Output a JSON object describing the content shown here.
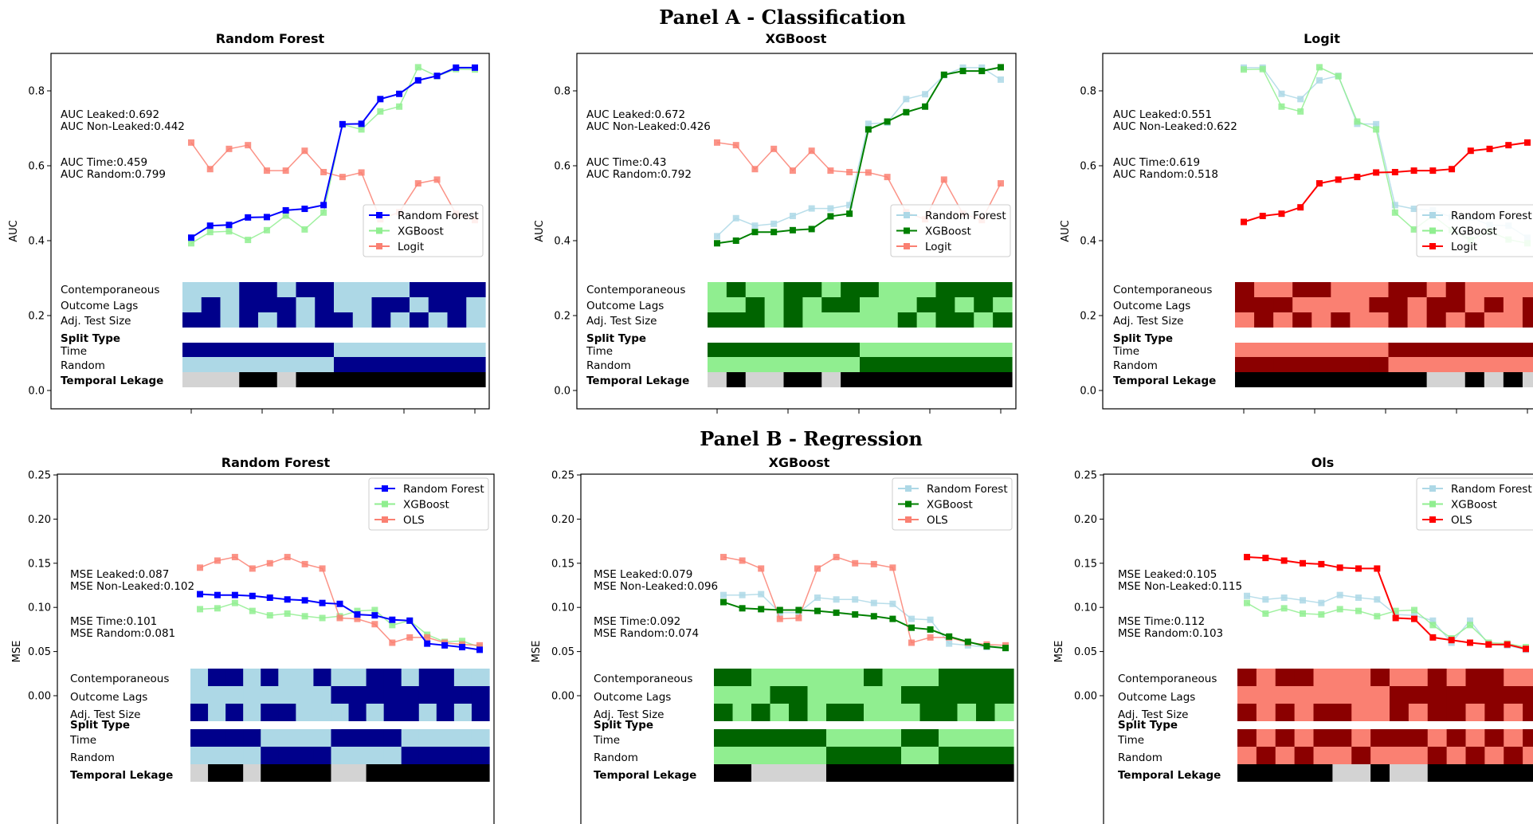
{
  "panels": [
    {
      "title": "Panel A - Classification"
    },
    {
      "title": "Panel B - Regression"
    }
  ],
  "heatmap_labels": {
    "contemporaneous": "Contemporaneous",
    "outcome_lags": "Outcome Lags",
    "adj_test_size": "Adj. Test Size",
    "split_type": "Split Type",
    "time": "Time",
    "random": "Random",
    "temporal_leakage": "Temporal Lekage"
  },
  "colors": {
    "rf_dark": "#00008b",
    "rf_light": "#add8e6",
    "rf_line": "#0000ff",
    "xgb_dark": "#006400",
    "xgb_light": "#90ee90",
    "xgb_line": "#008000",
    "lin_dark": "#8b0000",
    "lin_light": "#fa8072",
    "lin_line": "#ff0000",
    "leak_on": "#000000",
    "leak_off": "#d3d3d3"
  },
  "chart_data": [
    {
      "type": "line",
      "panel": 0,
      "title": "Random Forest",
      "highlight": 0,
      "xlabel": "",
      "ylabel": "AUC",
      "ylim": [
        -0.05,
        0.9
      ],
      "yticks": [
        "0.0",
        "0.2",
        "0.4",
        "0.6",
        "0.8"
      ],
      "annotations": [
        "AUC Leaked:0.692",
        "AUC Non-Leaked:0.442",
        "AUC Time:0.459",
        "AUC Random:0.799"
      ],
      "series": [
        {
          "name": "Random Forest",
          "values": [
            0.408,
            0.44,
            0.442,
            0.462,
            0.463,
            0.481,
            0.485,
            0.495,
            0.711,
            0.712,
            0.778,
            0.792,
            0.828,
            0.84,
            0.862,
            0.862
          ]
        },
        {
          "name": "XGBoost",
          "values": [
            0.393,
            0.423,
            0.425,
            0.402,
            0.428,
            0.467,
            0.43,
            0.475,
            0.71,
            0.697,
            0.745,
            0.758,
            0.863,
            0.839,
            0.858,
            0.857
          ]
        },
        {
          "name": "Logit",
          "values": [
            0.662,
            0.591,
            0.645,
            0.655,
            0.587,
            0.587,
            0.64,
            0.583,
            0.57,
            0.582,
            0.457,
            0.476,
            0.553,
            0.563,
            0.472,
            0.455
          ]
        }
      ],
      "heatmap": {
        "contemporaneous": [
          0,
          0,
          0,
          1,
          1,
          0,
          1,
          1,
          0,
          0,
          0,
          0,
          1,
          1,
          1,
          1
        ],
        "outcome_lags": [
          0,
          1,
          0,
          1,
          1,
          1,
          0,
          1,
          0,
          0,
          1,
          1,
          0,
          1,
          1,
          0
        ],
        "adj_test_size": [
          1,
          1,
          0,
          1,
          0,
          1,
          0,
          1,
          1,
          0,
          1,
          0,
          1,
          0,
          1,
          0
        ],
        "time": [
          1,
          1,
          1,
          1,
          1,
          1,
          1,
          1,
          0,
          0,
          0,
          0,
          0,
          0,
          0,
          0
        ],
        "random": [
          0,
          0,
          0,
          0,
          0,
          0,
          0,
          0,
          1,
          1,
          1,
          1,
          1,
          1,
          1,
          1
        ],
        "leakage": [
          0,
          0,
          0,
          1,
          1,
          0,
          1,
          1,
          1,
          1,
          1,
          1,
          1,
          1,
          1,
          1
        ]
      }
    },
    {
      "type": "line",
      "panel": 0,
      "title": "XGBoost",
      "highlight": 1,
      "xlabel": "",
      "ylabel": "AUC",
      "ylim": [
        -0.05,
        0.9
      ],
      "yticks": [
        "0.0",
        "0.2",
        "0.4",
        "0.6",
        "0.8"
      ],
      "annotations": [
        "AUC Leaked:0.672",
        "AUC Non-Leaked:0.426",
        "AUC Time:0.43",
        "AUC Random:0.792"
      ],
      "series": [
        {
          "name": "Random Forest",
          "values": [
            0.412,
            0.46,
            0.44,
            0.445,
            0.466,
            0.486,
            0.486,
            0.495,
            0.712,
            0.715,
            0.778,
            0.791,
            0.842,
            0.862,
            0.862,
            0.83
          ]
        },
        {
          "name": "XGBoost",
          "values": [
            0.393,
            0.4,
            0.423,
            0.423,
            0.428,
            0.431,
            0.465,
            0.472,
            0.697,
            0.718,
            0.743,
            0.758,
            0.843,
            0.853,
            0.853,
            0.863
          ]
        },
        {
          "name": "Logit",
          "values": [
            0.662,
            0.655,
            0.591,
            0.645,
            0.587,
            0.64,
            0.587,
            0.583,
            0.582,
            0.57,
            0.476,
            0.457,
            0.563,
            0.472,
            0.455,
            0.553
          ]
        }
      ],
      "heatmap": {
        "contemporaneous": [
          0,
          1,
          0,
          0,
          1,
          1,
          0,
          1,
          1,
          0,
          0,
          0,
          1,
          1,
          1,
          1
        ],
        "outcome_lags": [
          0,
          0,
          1,
          0,
          1,
          0,
          1,
          1,
          0,
          0,
          0,
          1,
          1,
          0,
          1,
          0
        ],
        "adj_test_size": [
          1,
          1,
          1,
          0,
          1,
          0,
          0,
          0,
          0,
          0,
          1,
          0,
          1,
          1,
          0,
          1
        ],
        "time": [
          1,
          1,
          1,
          1,
          1,
          1,
          1,
          1,
          0,
          0,
          0,
          0,
          0,
          0,
          0,
          0
        ],
        "random": [
          0,
          0,
          0,
          0,
          0,
          0,
          0,
          0,
          1,
          1,
          1,
          1,
          1,
          1,
          1,
          1
        ],
        "leakage": [
          0,
          1,
          0,
          0,
          1,
          1,
          0,
          1,
          1,
          1,
          1,
          1,
          1,
          1,
          1,
          1
        ]
      }
    },
    {
      "type": "line",
      "panel": 0,
      "title": "Logit",
      "highlight": 2,
      "xlabel": "",
      "ylabel": "AUC",
      "ylim": [
        -0.05,
        0.9
      ],
      "yticks": [
        "0.0",
        "0.2",
        "0.4",
        "0.6",
        "0.8"
      ],
      "annotations": [
        "AUC Leaked:0.551",
        "AUC Non-Leaked:0.622",
        "AUC Time:0.619",
        "AUC Random:0.518"
      ],
      "series": [
        {
          "name": "Random Forest",
          "values": [
            0.862,
            0.862,
            0.792,
            0.778,
            0.828,
            0.84,
            0.712,
            0.711,
            0.495,
            0.485,
            0.481,
            0.463,
            0.462,
            0.442,
            0.44,
            0.408
          ]
        },
        {
          "name": "XGBoost",
          "values": [
            0.857,
            0.858,
            0.758,
            0.745,
            0.863,
            0.839,
            0.718,
            0.697,
            0.475,
            0.43,
            0.467,
            0.428,
            0.402,
            0.425,
            0.403,
            0.393
          ]
        },
        {
          "name": "Logit",
          "values": [
            0.45,
            0.466,
            0.472,
            0.489,
            0.553,
            0.563,
            0.57,
            0.582,
            0.583,
            0.587,
            0.587,
            0.591,
            0.64,
            0.645,
            0.655,
            0.662
          ]
        }
      ],
      "heatmap": {
        "contemporaneous": [
          1,
          0,
          0,
          1,
          1,
          0,
          0,
          0,
          1,
          1,
          0,
          1,
          0,
          0,
          0,
          0
        ],
        "outcome_lags": [
          1,
          1,
          1,
          0,
          0,
          0,
          0,
          1,
          1,
          0,
          1,
          1,
          0,
          1,
          0,
          1
        ],
        "adj_test_size": [
          0,
          1,
          0,
          1,
          0,
          1,
          0,
          0,
          1,
          0,
          1,
          0,
          1,
          0,
          0,
          1
        ],
        "time": [
          0,
          0,
          0,
          0,
          0,
          0,
          0,
          0,
          1,
          1,
          1,
          1,
          1,
          1,
          1,
          1
        ],
        "random": [
          1,
          1,
          1,
          1,
          1,
          1,
          1,
          1,
          0,
          0,
          0,
          0,
          0,
          0,
          0,
          0
        ],
        "leakage": [
          1,
          1,
          1,
          1,
          1,
          1,
          1,
          1,
          1,
          1,
          0,
          0,
          1,
          0,
          1,
          0
        ]
      }
    },
    {
      "type": "line",
      "panel": 1,
      "title": "Random Forest",
      "highlight": 0,
      "xlabel": "",
      "ylabel": "MSE",
      "ylim": [
        -0.15,
        0.25
      ],
      "yticks": [
        "0.00",
        "0.05",
        "0.10",
        "0.15",
        "0.20",
        "0.25"
      ],
      "annotations": [
        "MSE Leaked:0.087",
        "MSE Non-Leaked:0.102",
        "MSE Time:0.101",
        "MSE Random:0.081"
      ],
      "series": [
        {
          "name": "Random Forest",
          "values": [
            0.115,
            0.114,
            0.114,
            0.113,
            0.111,
            0.109,
            0.108,
            0.105,
            0.104,
            0.092,
            0.091,
            0.086,
            0.085,
            0.059,
            0.057,
            0.055,
            0.052
          ]
        },
        {
          "name": "XGBoost",
          "values": [
            0.098,
            0.099,
            0.105,
            0.096,
            0.091,
            0.093,
            0.09,
            0.088,
            0.09,
            0.096,
            0.097,
            0.08,
            0.085,
            0.069,
            0.061,
            0.062,
            0.055
          ]
        },
        {
          "name": "OLS",
          "values": [
            0.145,
            0.153,
            0.157,
            0.144,
            0.15,
            0.157,
            0.149,
            0.144,
            0.088,
            0.087,
            0.081,
            0.06,
            0.066,
            0.066,
            0.06,
            0.058,
            0.057
          ]
        }
      ],
      "heatmap": {
        "contemporaneous": [
          0,
          1,
          1,
          0,
          1,
          0,
          0,
          1,
          0,
          0,
          1,
          1,
          0,
          1,
          1,
          0,
          0
        ],
        "outcome_lags": [
          0,
          0,
          0,
          0,
          0,
          0,
          0,
          0,
          1,
          1,
          1,
          1,
          1,
          1,
          1,
          1,
          1
        ],
        "adj_test_size": [
          1,
          0,
          1,
          0,
          1,
          1,
          0,
          0,
          0,
          1,
          0,
          1,
          1,
          0,
          1,
          0,
          1
        ],
        "time": [
          1,
          1,
          1,
          1,
          0,
          0,
          0,
          0,
          1,
          1,
          1,
          1,
          0,
          0,
          0,
          0,
          0
        ],
        "random": [
          0,
          0,
          0,
          0,
          1,
          1,
          1,
          1,
          0,
          0,
          0,
          0,
          1,
          1,
          1,
          1,
          1
        ],
        "leakage": [
          0,
          1,
          1,
          0,
          1,
          1,
          1,
          1,
          0,
          0,
          1,
          1,
          1,
          1,
          1,
          1,
          1
        ]
      }
    },
    {
      "type": "line",
      "panel": 1,
      "title": "XGBoost",
      "highlight": 1,
      "xlabel": "",
      "ylabel": "MSE",
      "ylim": [
        -0.15,
        0.25
      ],
      "yticks": [
        "0.00",
        "0.05",
        "0.10",
        "0.15",
        "0.20",
        "0.25"
      ],
      "annotations": [
        "MSE Leaked:0.079",
        "MSE Non-Leaked:0.096",
        "MSE Time:0.092",
        "MSE Random:0.074"
      ],
      "series": [
        {
          "name": "Random Forest",
          "values": [
            0.114,
            0.114,
            0.115,
            0.094,
            0.094,
            0.111,
            0.109,
            0.109,
            0.105,
            0.104,
            0.087,
            0.086,
            0.059,
            0.057,
            0.055,
            0.054
          ]
        },
        {
          "name": "XGBoost",
          "values": [
            0.106,
            0.099,
            0.098,
            0.097,
            0.097,
            0.096,
            0.094,
            0.092,
            0.09,
            0.087,
            0.077,
            0.075,
            0.067,
            0.061,
            0.056,
            0.054
          ]
        },
        {
          "name": "OLS",
          "values": [
            0.157,
            0.153,
            0.144,
            0.087,
            0.088,
            0.144,
            0.157,
            0.15,
            0.149,
            0.145,
            0.06,
            0.066,
            0.066,
            0.06,
            0.058,
            0.057
          ]
        }
      ],
      "heatmap": {
        "contemporaneous": [
          1,
          1,
          0,
          0,
          0,
          0,
          0,
          0,
          1,
          0,
          0,
          0,
          1,
          1,
          1,
          1
        ],
        "outcome_lags": [
          0,
          0,
          0,
          1,
          1,
          0,
          0,
          0,
          0,
          0,
          1,
          1,
          1,
          1,
          1,
          1
        ],
        "adj_test_size": [
          1,
          0,
          1,
          0,
          1,
          0,
          1,
          1,
          0,
          0,
          0,
          1,
          1,
          0,
          1,
          0
        ],
        "time": [
          1,
          1,
          1,
          1,
          1,
          1,
          0,
          0,
          0,
          0,
          1,
          1,
          0,
          0,
          0,
          0
        ],
        "random": [
          0,
          0,
          0,
          0,
          0,
          0,
          1,
          1,
          1,
          1,
          0,
          0,
          1,
          1,
          1,
          1
        ],
        "leakage": [
          1,
          1,
          0,
          0,
          0,
          0,
          1,
          1,
          1,
          1,
          1,
          1,
          1,
          1,
          1,
          1
        ]
      }
    },
    {
      "type": "line",
      "panel": 1,
      "title": "Ols",
      "highlight": 2,
      "xlabel": "",
      "ylabel": "MSE",
      "ylim": [
        -0.15,
        0.25
      ],
      "yticks": [
        "0.00",
        "0.05",
        "0.10",
        "0.15",
        "0.20",
        "0.25"
      ],
      "annotations": [
        "MSE Leaked:0.105",
        "MSE Non-Leaked:0.115",
        "MSE Time:0.112",
        "MSE Random:0.103"
      ],
      "series": [
        {
          "name": "Random Forest",
          "values": [
            0.113,
            0.109,
            0.111,
            0.108,
            0.105,
            0.114,
            0.111,
            0.109,
            0.092,
            0.091,
            0.085,
            0.06,
            0.085,
            0.058,
            0.057,
            0.052
          ]
        },
        {
          "name": "XGBoost",
          "values": [
            0.105,
            0.093,
            0.099,
            0.093,
            0.092,
            0.098,
            0.096,
            0.09,
            0.096,
            0.097,
            0.08,
            0.065,
            0.08,
            0.06,
            0.059,
            0.055
          ]
        },
        {
          "name": "OLS",
          "values": [
            0.157,
            0.156,
            0.153,
            0.15,
            0.149,
            0.145,
            0.144,
            0.144,
            0.088,
            0.087,
            0.066,
            0.063,
            0.06,
            0.058,
            0.058,
            0.053
          ]
        }
      ],
      "heatmap": {
        "contemporaneous": [
          1,
          0,
          1,
          1,
          0,
          0,
          0,
          1,
          0,
          0,
          1,
          0,
          1,
          1,
          0,
          0
        ],
        "outcome_lags": [
          0,
          0,
          0,
          0,
          0,
          0,
          0,
          0,
          1,
          1,
          1,
          1,
          1,
          1,
          1,
          1
        ],
        "adj_test_size": [
          1,
          0,
          1,
          0,
          1,
          1,
          0,
          0,
          1,
          0,
          1,
          1,
          0,
          1,
          0,
          1
        ],
        "time": [
          1,
          0,
          1,
          0,
          1,
          1,
          0,
          1,
          1,
          1,
          0,
          1,
          0,
          1,
          0,
          1
        ],
        "random": [
          0,
          1,
          0,
          1,
          0,
          0,
          1,
          0,
          0,
          0,
          1,
          0,
          1,
          0,
          1,
          0
        ],
        "leakage": [
          1,
          1,
          1,
          1,
          1,
          0,
          0,
          1,
          0,
          0,
          1,
          1,
          1,
          1,
          1,
          1
        ]
      }
    }
  ]
}
